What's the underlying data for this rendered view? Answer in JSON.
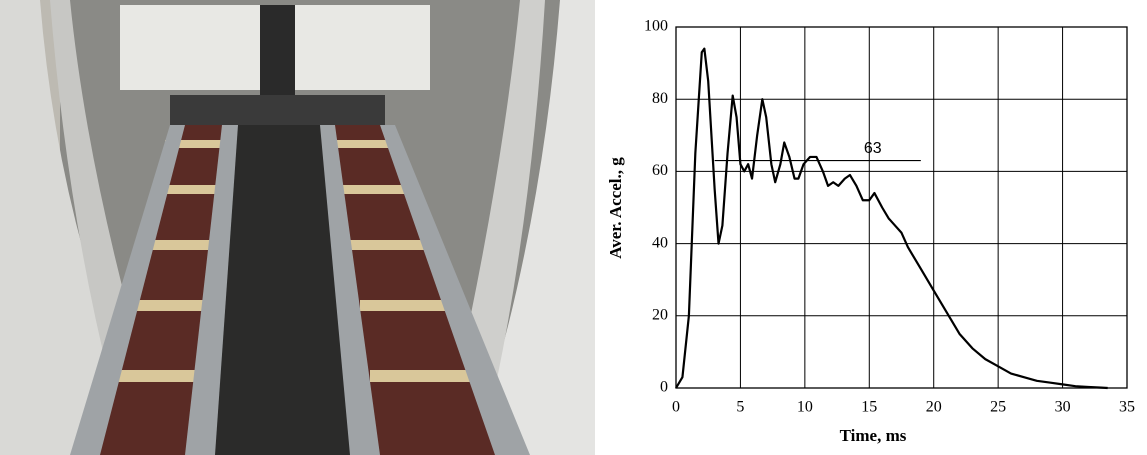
{
  "chart_data": {
    "type": "line",
    "x_label": "Time, ms",
    "y_label": "Aver. Accel., g",
    "xlim": [
      0,
      35
    ],
    "xticks": [
      0,
      5,
      10,
      15,
      20,
      25,
      30,
      35
    ],
    "ylim": [
      0,
      100
    ],
    "yticks": [
      0,
      20,
      40,
      60,
      80,
      100
    ],
    "grid": true,
    "series": [
      {
        "color": "#000000",
        "x": [
          0,
          0.5,
          1,
          1.5,
          2,
          2.2,
          2.5,
          3,
          3.3,
          3.6,
          4,
          4.4,
          4.7,
          5,
          5.3,
          5.6,
          5.9,
          6.3,
          6.7,
          7,
          7.4,
          7.7,
          8.1,
          8.4,
          8.8,
          9.2,
          9.5,
          9.9,
          10.4,
          10.9,
          11.4,
          11.8,
          12.2,
          12.6,
          13.1,
          13.5,
          14,
          14.5,
          15,
          15.4,
          16,
          16.5,
          17,
          17.5,
          18,
          19,
          20,
          21,
          22,
          23,
          24,
          25,
          26,
          27,
          28,
          29,
          30,
          31,
          32,
          33,
          33.5
        ],
        "values": [
          0,
          3,
          20,
          65,
          93,
          94,
          85,
          55,
          40,
          45,
          65,
          81,
          75,
          62,
          60,
          62,
          58,
          70,
          80,
          75,
          62,
          57,
          62,
          68,
          64,
          58,
          58,
          62,
          64,
          64,
          60,
          56,
          57,
          56,
          58,
          59,
          56,
          52,
          52,
          54,
          50,
          47,
          45,
          43,
          39,
          33,
          27,
          21,
          15,
          11,
          8,
          6,
          4,
          3,
          2,
          1.5,
          1,
          0.5,
          0.3,
          0.1,
          0
        ]
      }
    ],
    "reference_line": {
      "y": 63,
      "x": [
        3,
        19
      ]
    }
  }
}
